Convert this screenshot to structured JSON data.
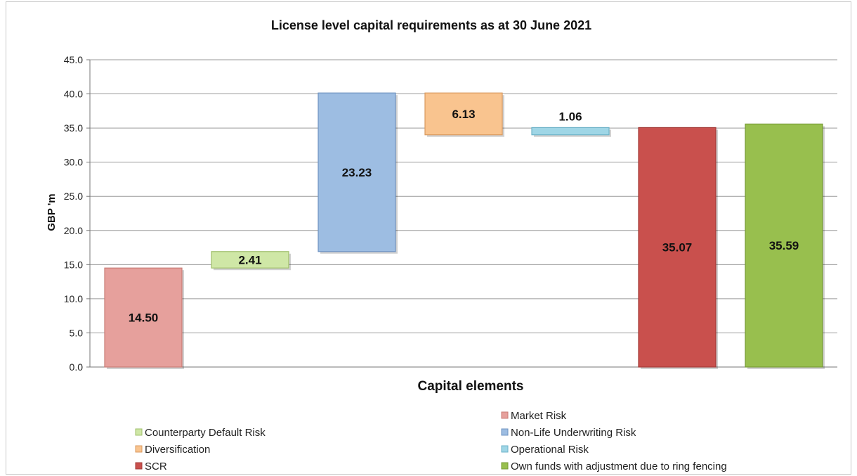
{
  "chart_data": {
    "type": "waterfall",
    "title": "License level capital requirements as at 30 June 2021",
    "xlabel": "Capital elements",
    "ylabel": "GBP 'm",
    "ylim": [
      0,
      45
    ],
    "yticks": [
      "0.0",
      "5.0",
      "10.0",
      "15.0",
      "20.0",
      "25.0",
      "30.0",
      "35.0",
      "40.0",
      "45.0"
    ],
    "grid": true,
    "legend_position": "bottom",
    "series": [
      {
        "name": "Market Risk",
        "label": "14.50",
        "base": 0,
        "top": 14.5,
        "color": "#e6a09c",
        "edge": "#c97b76"
      },
      {
        "name": "Counterparty Default Risk",
        "label": "2.41",
        "base": 14.5,
        "top": 16.91,
        "color": "#cfe7a6",
        "edge": "#9fbf6a"
      },
      {
        "name": "Non-Life Underwriting Risk",
        "label": "23.23",
        "base": 16.91,
        "top": 40.14,
        "color": "#9dbde2",
        "edge": "#6f93c2"
      },
      {
        "name": "Diversification",
        "label": "6.13",
        "base": 34.01,
        "top": 40.14,
        "color": "#f9c48f",
        "edge": "#d99a5f"
      },
      {
        "name": "Operational Risk",
        "label": "1.06",
        "base": 34.01,
        "top": 35.07,
        "color": "#9fd6e6",
        "edge": "#6eb3c9"
      },
      {
        "name": "SCR",
        "label": "35.07",
        "base": 0,
        "top": 35.07,
        "color": "#c9504d",
        "edge": "#a33b38"
      },
      {
        "name": "Own funds with adjustment due to ring fencing",
        "label": "35.59",
        "base": 0,
        "top": 35.59,
        "color": "#98bf4e",
        "edge": "#779b36"
      }
    ],
    "legend_entries": [
      "Market Risk",
      "Counterparty Default Risk",
      "Non-Life Underwriting Risk",
      "Diversification",
      "Operational Risk",
      "SCR",
      "Own funds with adjustment due to ring fencing"
    ]
  }
}
